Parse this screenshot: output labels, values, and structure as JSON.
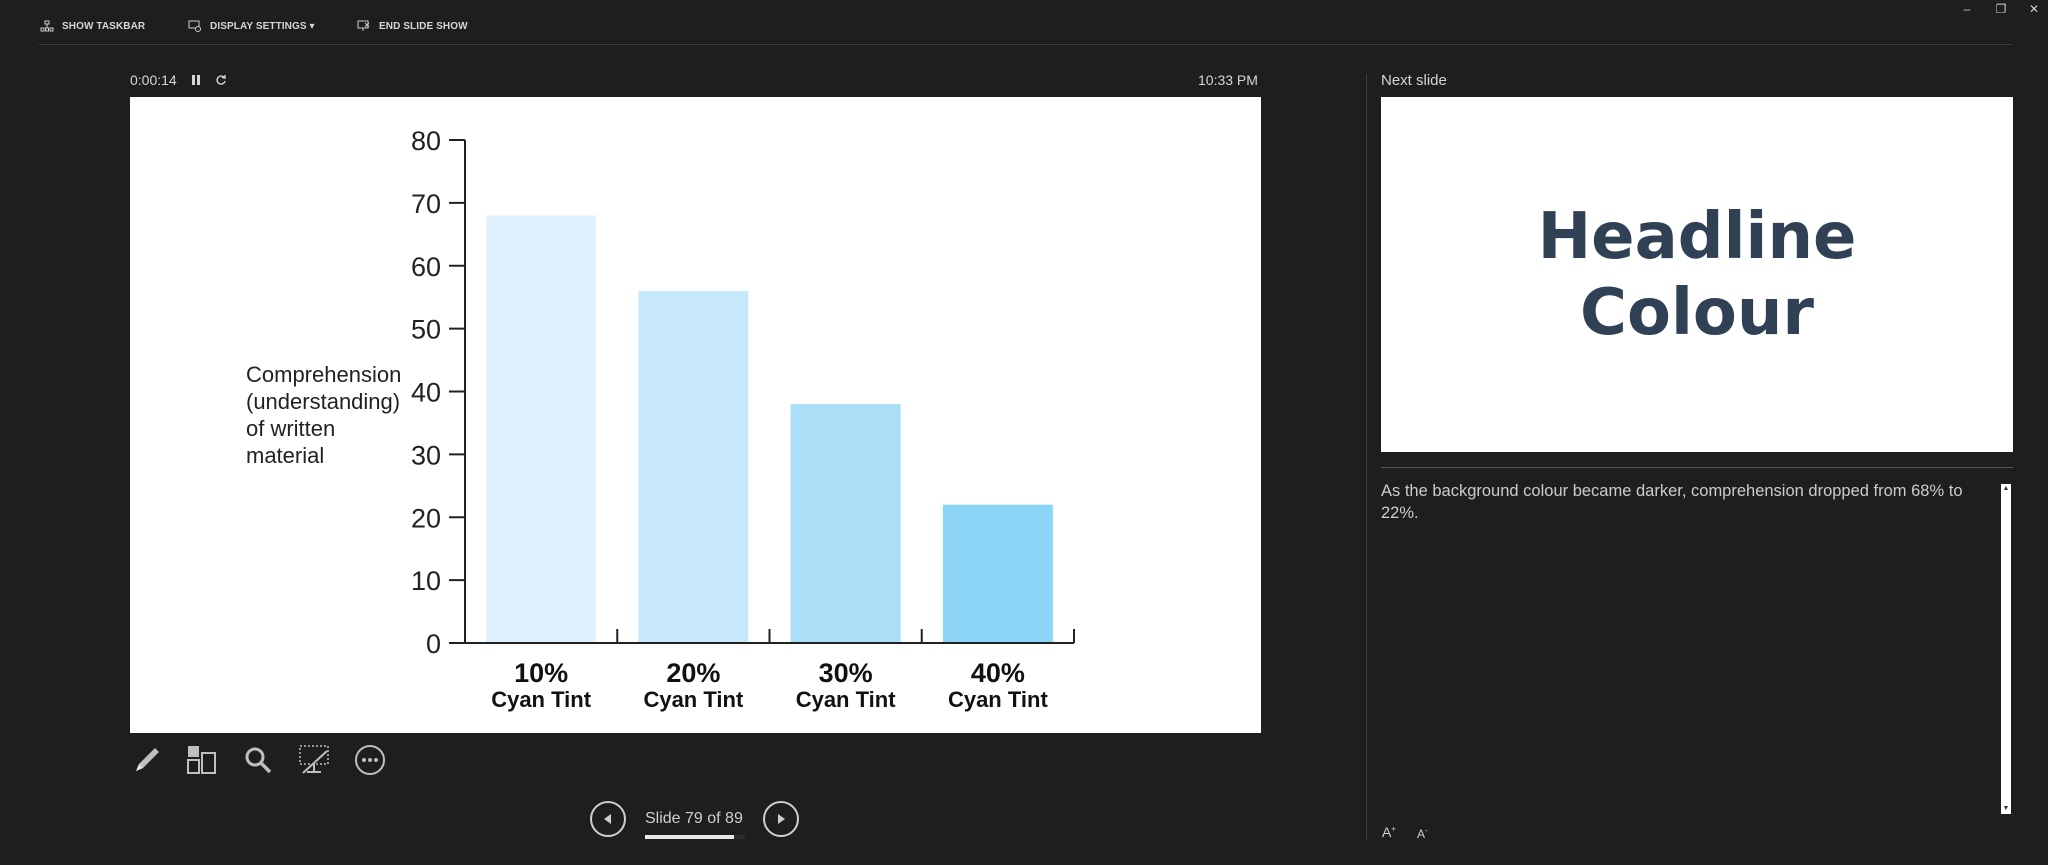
{
  "toolbar": {
    "show_taskbar": "SHOW TASKBAR",
    "display_settings": "DISPLAY SETTINGS ▾",
    "end_slide_show": "END SLIDE SHOW"
  },
  "timer": {
    "elapsed": "0:00:14",
    "clock": "10:33 PM"
  },
  "slide": {
    "ylabel_lines": [
      "Comprehension",
      "(understanding)",
      "of written",
      "material"
    ]
  },
  "chart_data": {
    "type": "bar",
    "categories": [
      {
        "pct": "10%",
        "label": "Cyan Tint"
      },
      {
        "pct": "20%",
        "label": "Cyan Tint"
      },
      {
        "pct": "30%",
        "label": "Cyan Tint"
      },
      {
        "pct": "40%",
        "label": "Cyan Tint"
      }
    ],
    "values": [
      68,
      56,
      38,
      22
    ],
    "colors": [
      "#dff1fc",
      "#c6e8fa",
      "#abdff8",
      "#8dd5f6"
    ],
    "ylabel": "Comprehension (understanding) of written material",
    "ylim": [
      0,
      80
    ],
    "yticks": [
      0,
      10,
      20,
      30,
      40,
      50,
      60,
      70,
      80
    ],
    "grid": false
  },
  "navigation": {
    "counter": "Slide 79 of 89",
    "current": 79,
    "total": 89
  },
  "next_slide": {
    "label": "Next slide",
    "title_line1": "Headline",
    "title_line2": "Colour"
  },
  "notes": {
    "text": "As the background colour became darker, comprehension dropped from 68% to 22%."
  },
  "icons": {
    "taskbar": "show-taskbar-icon",
    "display": "display-settings-icon",
    "end": "end-slide-show-icon",
    "pen": "pen-icon",
    "grid": "see-all-slides-icon",
    "zoom": "zoom-icon",
    "black": "black-screen-icon",
    "more": "more-options-icon"
  }
}
